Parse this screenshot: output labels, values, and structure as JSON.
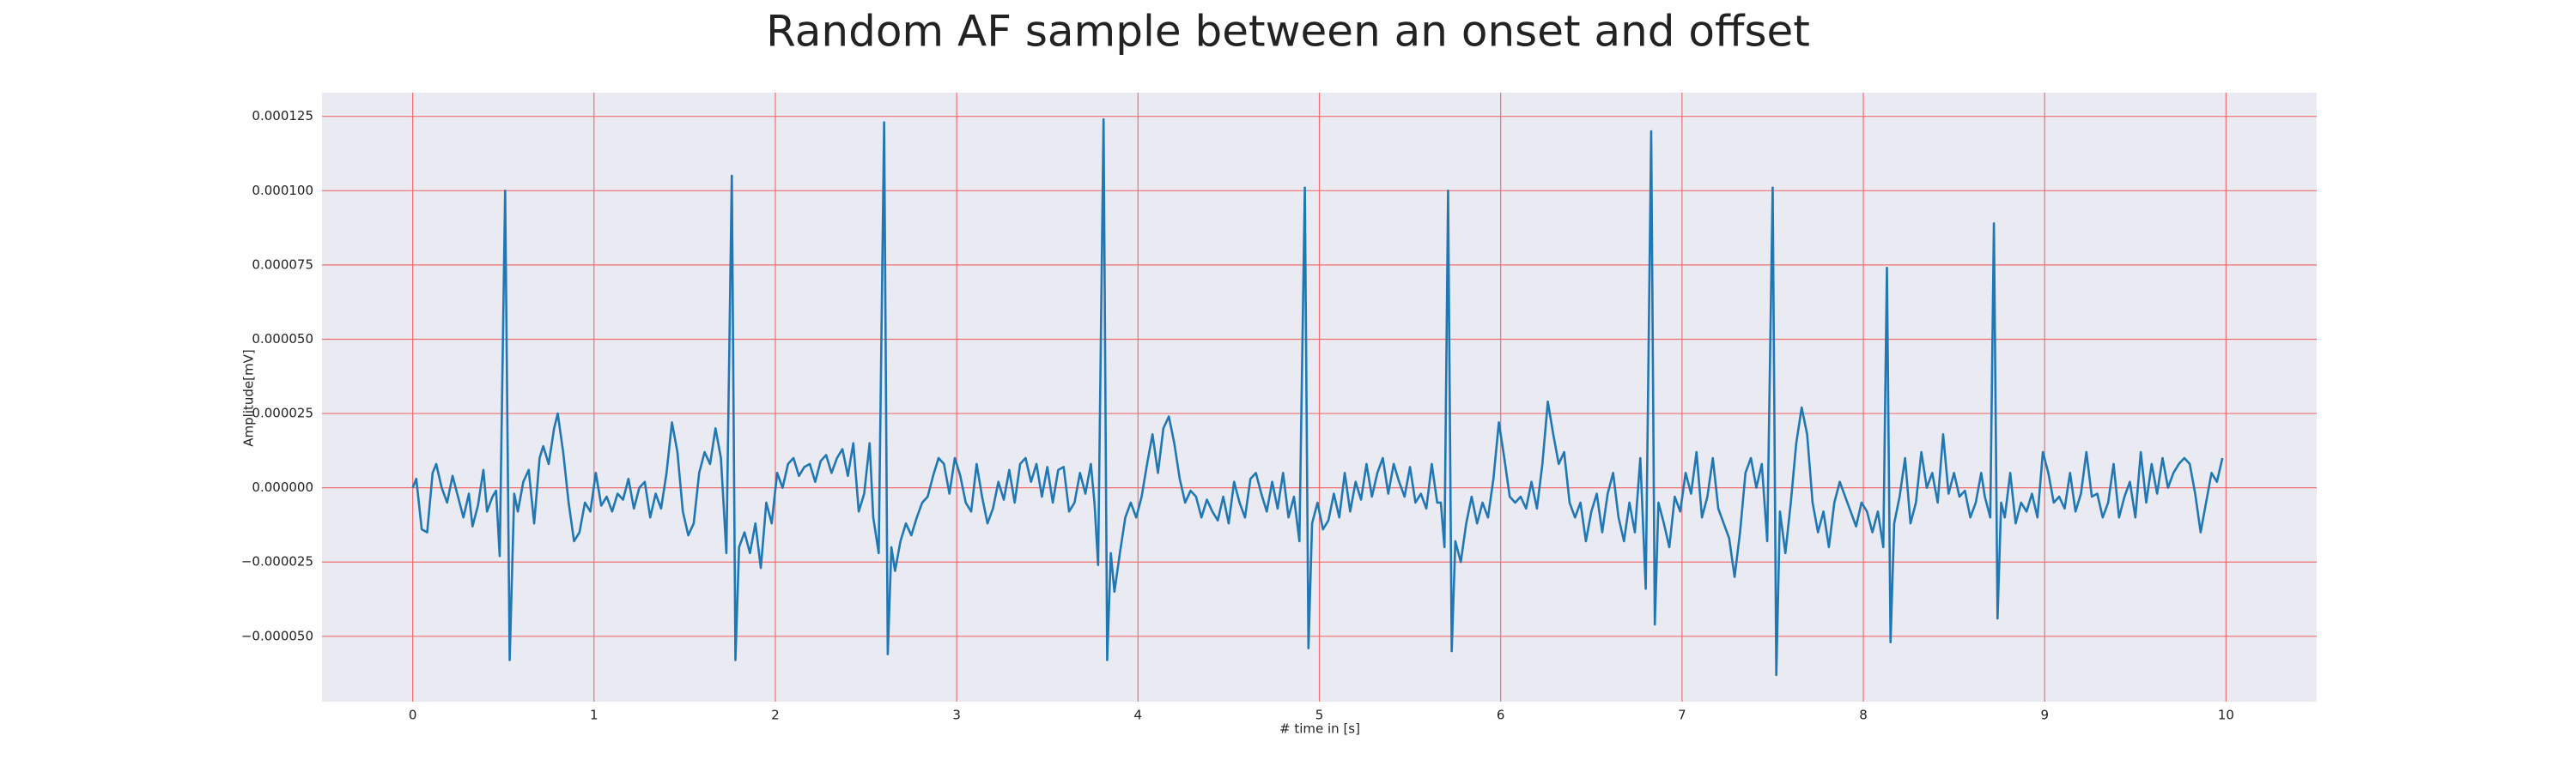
{
  "chart_data": {
    "type": "line",
    "title": "Random AF sample between an onset and offset",
    "xlabel": "# time in [s]",
    "ylabel": "Amplitude[mV]",
    "grid": true,
    "grid_color": "#f07070",
    "background": "#eaeaf2",
    "xlim": [
      -0.5,
      10.5
    ],
    "ylim": [
      -7.2e-05,
      0.000133
    ],
    "xticks": [
      0,
      1,
      2,
      3,
      4,
      5,
      6,
      7,
      8,
      9,
      10
    ],
    "yticks": [
      {
        "value": -5e-05,
        "label": "−0.000050"
      },
      {
        "value": -2.5e-05,
        "label": "−0.000025"
      },
      {
        "value": 0,
        "label": "0.000000"
      },
      {
        "value": 2.5e-05,
        "label": "0.000025"
      },
      {
        "value": 5e-05,
        "label": "0.000050"
      },
      {
        "value": 7.5e-05,
        "label": "0.000075"
      },
      {
        "value": 0.0001,
        "label": "0.000100"
      },
      {
        "value": 0.000125,
        "label": "0.000125"
      }
    ],
    "x": [
      0,
      0.02,
      0.05,
      0.08,
      0.11,
      0.13,
      0.16,
      0.19,
      0.22,
      0.25,
      0.28,
      0.31,
      0.33,
      0.36,
      0.39,
      0.41,
      0.44,
      0.46,
      0.48,
      0.51,
      0.535,
      0.56,
      0.58,
      0.61,
      0.64,
      0.67,
      0.7,
      0.72,
      0.75,
      0.78,
      0.8,
      0.83,
      0.86,
      0.89,
      0.92,
      0.95,
      0.98,
      1.01,
      1.04,
      1.07,
      1.1,
      1.13,
      1.16,
      1.19,
      1.22,
      1.25,
      1.28,
      1.31,
      1.34,
      1.37,
      1.4,
      1.43,
      1.46,
      1.49,
      1.52,
      1.55,
      1.58,
      1.61,
      1.64,
      1.67,
      1.7,
      1.73,
      1.76,
      1.78,
      1.8,
      1.83,
      1.86,
      1.89,
      1.92,
      1.95,
      1.98,
      2.01,
      2.04,
      2.07,
      2.1,
      2.13,
      2.16,
      2.19,
      2.22,
      2.25,
      2.28,
      2.31,
      2.34,
      2.37,
      2.4,
      2.43,
      2.46,
      2.49,
      2.52,
      2.54,
      2.57,
      2.6,
      2.62,
      2.64,
      2.66,
      2.69,
      2.72,
      2.75,
      2.78,
      2.81,
      2.84,
      2.87,
      2.9,
      2.93,
      2.96,
      2.99,
      3.02,
      3.05,
      3.08,
      3.11,
      3.14,
      3.17,
      3.2,
      3.23,
      3.26,
      3.29,
      3.32,
      3.35,
      3.38,
      3.41,
      3.44,
      3.47,
      3.5,
      3.53,
      3.56,
      3.59,
      3.62,
      3.65,
      3.68,
      3.71,
      3.74,
      3.76,
      3.78,
      3.81,
      3.83,
      3.85,
      3.87,
      3.9,
      3.93,
      3.96,
      3.99,
      4.02,
      4.05,
      4.08,
      4.11,
      4.14,
      4.17,
      4.2,
      4.23,
      4.26,
      4.29,
      4.32,
      4.35,
      4.38,
      4.41,
      4.44,
      4.47,
      4.5,
      4.53,
      4.56,
      4.59,
      4.62,
      4.65,
      4.68,
      4.71,
      4.74,
      4.77,
      4.8,
      4.83,
      4.86,
      4.89,
      4.92,
      4.94,
      4.96,
      4.99,
      5.02,
      5.05,
      5.08,
      5.11,
      5.14,
      5.17,
      5.2,
      5.23,
      5.26,
      5.29,
      5.32,
      5.35,
      5.38,
      5.41,
      5.44,
      5.47,
      5.5,
      5.53,
      5.56,
      5.59,
      5.62,
      5.65,
      5.67,
      5.69,
      5.71,
      5.73,
      5.75,
      5.78,
      5.81,
      5.84,
      5.87,
      5.9,
      5.93,
      5.96,
      5.99,
      6.02,
      6.05,
      6.08,
      6.11,
      6.14,
      6.17,
      6.2,
      6.23,
      6.26,
      6.29,
      6.32,
      6.35,
      6.38,
      6.41,
      6.44,
      6.47,
      6.5,
      6.53,
      6.56,
      6.59,
      6.62,
      6.65,
      6.68,
      6.71,
      6.74,
      6.77,
      6.8,
      6.83,
      6.85,
      6.87,
      6.9,
      6.93,
      6.96,
      6.99,
      7.02,
      7.05,
      7.08,
      7.11,
      7.14,
      7.17,
      7.2,
      7.23,
      7.26,
      7.29,
      7.32,
      7.35,
      7.38,
      7.41,
      7.44,
      7.47,
      7.5,
      7.52,
      7.54,
      7.57,
      7.6,
      7.63,
      7.66,
      7.69,
      7.72,
      7.75,
      7.78,
      7.81,
      7.84,
      7.87,
      7.9,
      7.93,
      7.96,
      7.99,
      8.02,
      8.05,
      8.08,
      8.11,
      8.13,
      8.15,
      8.17,
      8.2,
      8.23,
      8.26,
      8.29,
      8.32,
      8.35,
      8.38,
      8.41,
      8.44,
      8.47,
      8.5,
      8.53,
      8.56,
      8.59,
      8.62,
      8.65,
      8.67,
      8.7,
      8.72,
      8.74,
      8.76,
      8.78,
      8.81,
      8.84,
      8.87,
      8.9,
      8.93,
      8.96,
      8.99,
      9.02,
      9.05,
      9.08,
      9.11,
      9.14,
      9.17,
      9.2,
      9.23,
      9.26,
      9.29,
      9.32,
      9.35,
      9.38,
      9.41,
      9.44,
      9.47,
      9.5,
      9.53,
      9.56,
      9.59,
      9.62,
      9.65,
      9.68,
      9.71,
      9.74,
      9.77,
      9.8,
      9.83,
      9.86,
      9.89,
      9.92,
      9.95,
      9.98
    ],
    "series": [
      {
        "color": "#1f77b4",
        "values": [
          0,
          3e-06,
          -1.4e-05,
          -1.5e-05,
          5e-06,
          8e-06,
          0,
          -5e-06,
          4e-06,
          -3e-06,
          -1e-05,
          -2e-06,
          -1.3e-05,
          -6e-06,
          6e-06,
          -8e-06,
          -3e-06,
          -1e-06,
          -2.3e-05,
          0.0001,
          -5.8e-05,
          -2e-06,
          -8e-06,
          2e-06,
          6e-06,
          -1.2e-05,
          1e-05,
          1.4e-05,
          8e-06,
          2e-05,
          2.5e-05,
          1.2e-05,
          -5e-06,
          -1.8e-05,
          -1.5e-05,
          -5e-06,
          -8e-06,
          5e-06,
          -6e-06,
          -3e-06,
          -8e-06,
          -2e-06,
          -4e-06,
          3e-06,
          -7e-06,
          0,
          2e-06,
          -1e-05,
          -2e-06,
          -7e-06,
          5e-06,
          2.2e-05,
          1.2e-05,
          -8e-06,
          -1.6e-05,
          -1.2e-05,
          5e-06,
          1.2e-05,
          8e-06,
          2e-05,
          1e-05,
          -2.2e-05,
          0.000105,
          -5.8e-05,
          -2e-05,
          -1.5e-05,
          -2.2e-05,
          -1.2e-05,
          -2.7e-05,
          -5e-06,
          -1.2e-05,
          5e-06,
          0,
          8e-06,
          1e-05,
          4e-06,
          7e-06,
          8e-06,
          2e-06,
          9e-06,
          1.1e-05,
          5e-06,
          1e-05,
          1.3e-05,
          4e-06,
          1.5e-05,
          -8e-06,
          -2e-06,
          1.5e-05,
          -1e-05,
          -2.2e-05,
          0.000123,
          -5.6e-05,
          -2e-05,
          -2.8e-05,
          -1.8e-05,
          -1.2e-05,
          -1.6e-05,
          -1e-05,
          -5e-06,
          -3e-06,
          4e-06,
          1e-05,
          8e-06,
          -2e-06,
          1e-05,
          4e-06,
          -5e-06,
          -8e-06,
          8e-06,
          -3e-06,
          -1.2e-05,
          -7e-06,
          2e-06,
          -4e-06,
          6e-06,
          -5e-06,
          8e-06,
          1e-05,
          2e-06,
          8e-06,
          -3e-06,
          7e-06,
          -5e-06,
          6e-06,
          7e-06,
          -8e-06,
          -5e-06,
          5e-06,
          -2e-06,
          8e-06,
          -5e-06,
          -2.6e-05,
          0.000124,
          -5.8e-05,
          -2.2e-05,
          -3.5e-05,
          -2.2e-05,
          -1e-05,
          -5e-06,
          -1e-05,
          -3e-06,
          8e-06,
          1.8e-05,
          5e-06,
          2e-05,
          2.4e-05,
          1.5e-05,
          3e-06,
          -5e-06,
          -1e-06,
          -3e-06,
          -1e-05,
          -4e-06,
          -8e-06,
          -1.1e-05,
          -3e-06,
          -1.2e-05,
          2e-06,
          -5e-06,
          -1e-05,
          3e-06,
          5e-06,
          -2e-06,
          -8e-06,
          2e-06,
          -7e-06,
          5e-06,
          -1e-05,
          -3e-06,
          -1.8e-05,
          0.000101,
          -5.4e-05,
          -1.2e-05,
          -5e-06,
          -1.4e-05,
          -1.1e-05,
          -2e-06,
          -1e-05,
          5e-06,
          -8e-06,
          2e-06,
          -4e-06,
          8e-06,
          -3e-06,
          5e-06,
          1e-05,
          -2e-06,
          8e-06,
          2e-06,
          -3e-06,
          7e-06,
          -5e-06,
          -2e-06,
          -7e-06,
          8e-06,
          -5e-06,
          -5e-06,
          -2e-05,
          0.0001,
          -5.5e-05,
          -1.8e-05,
          -2.5e-05,
          -1.2e-05,
          -3e-06,
          -1.2e-05,
          -5e-06,
          -1e-05,
          3e-06,
          2.2e-05,
          1e-05,
          -3e-06,
          -5e-06,
          -3e-06,
          -7e-06,
          2e-06,
          -7e-06,
          8e-06,
          2.9e-05,
          1.8e-05,
          8e-06,
          1.2e-05,
          -5e-06,
          -1e-05,
          -5e-06,
          -1.8e-05,
          -8e-06,
          -2e-06,
          -1.5e-05,
          -2e-06,
          5e-06,
          -1e-05,
          -1.8e-05,
          -5e-06,
          -1.5e-05,
          1e-05,
          -3.4e-05,
          0.00012,
          -4.6e-05,
          -5e-06,
          -1.2e-05,
          -2e-05,
          -3e-06,
          -8e-06,
          5e-06,
          -2e-06,
          1.2e-05,
          -1e-05,
          -3e-06,
          1e-05,
          -7e-06,
          -1.2e-05,
          -1.7e-05,
          -3e-05,
          -1.5e-05,
          5e-06,
          1e-05,
          0,
          8e-06,
          -1.8e-05,
          0.000101,
          -6.3e-05,
          -8e-06,
          -2.2e-05,
          -5e-06,
          1.5e-05,
          2.7e-05,
          1.8e-05,
          -5e-06,
          -1.5e-05,
          -8e-06,
          -2e-05,
          -5e-06,
          2e-06,
          -3e-06,
          -8e-06,
          -1.3e-05,
          -5e-06,
          -8e-06,
          -1.5e-05,
          -8e-06,
          -2e-05,
          7.4e-05,
          -5.2e-05,
          -1.2e-05,
          -3e-06,
          1e-05,
          -1.2e-05,
          -5e-06,
          1.2e-05,
          0,
          5e-06,
          -5e-06,
          1.8e-05,
          -2e-06,
          5e-06,
          -3e-06,
          -1e-06,
          -1e-05,
          -5e-06,
          5e-06,
          -3e-06,
          -1e-05,
          8.9e-05,
          -4.4e-05,
          -5e-06,
          -1e-05,
          5e-06,
          -1.2e-05,
          -5e-06,
          -8e-06,
          -2e-06,
          -1e-05,
          1.2e-05,
          5e-06,
          -5e-06,
          -3e-06,
          -7e-06,
          5e-06,
          -8e-06,
          -2e-06,
          1.2e-05,
          -3e-06,
          -2e-06,
          -1e-05,
          -5e-06,
          8e-06,
          -1e-05,
          -3e-06,
          2e-06,
          -1e-05,
          1.2e-05,
          -5e-06,
          8e-06,
          -2e-06,
          1e-05,
          0,
          5e-06,
          8e-06,
          1e-05,
          8e-06,
          -2e-06,
          -1.5e-05,
          -5e-06,
          5e-06,
          2e-06,
          1e-05
        ]
      }
    ]
  }
}
